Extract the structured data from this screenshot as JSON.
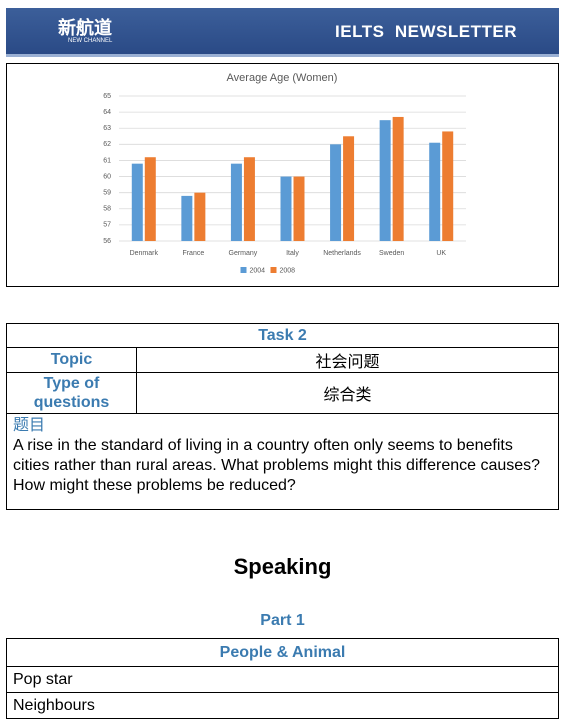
{
  "header": {
    "logo": "新航道",
    "logo_sub": "NEW CHANNEL",
    "title": "IELTS  NEWSLETTER"
  },
  "chart_data": {
    "type": "bar",
    "title": "Average Age (Women)",
    "categories": [
      "Denmark",
      "France",
      "Germany",
      "Italy",
      "Netherlands",
      "Sweden",
      "UK"
    ],
    "series": [
      {
        "name": "2004",
        "color": "#5b9bd5",
        "values": [
          60.8,
          58.8,
          60.8,
          60,
          62,
          63.5,
          62.1
        ]
      },
      {
        "name": "2008",
        "color": "#ed7d31",
        "values": [
          61.2,
          59,
          61.2,
          60,
          62.5,
          63.7,
          62.8
        ]
      }
    ],
    "ylim": [
      56,
      65
    ],
    "yticks": [
      56,
      57,
      58,
      59,
      60,
      61,
      62,
      63,
      64,
      65
    ],
    "grid": true,
    "legend": "bottom"
  },
  "task": {
    "title": "Task 2",
    "rows": [
      [
        "Topic",
        "社会问题"
      ],
      [
        "Type of questions",
        "综合类"
      ]
    ],
    "question_label": "题目",
    "question": "A rise in the standard of living in a country often only seems to benefits cities rather than rural areas. What problems might this difference causes? How might these problems be reduced?"
  },
  "speaking": {
    "title": "Speaking",
    "part": "Part 1",
    "table": {
      "title": "People & Animal",
      "rows": [
        "Pop star",
        "Neighbours"
      ]
    }
  }
}
